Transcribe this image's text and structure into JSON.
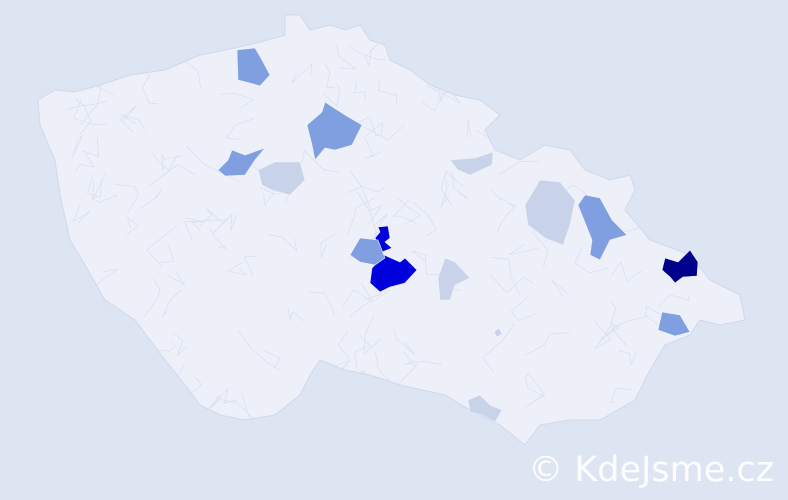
{
  "watermark": "© KdeJsme.cz",
  "colors": {
    "background": "#dde5f2",
    "base": "#edf0f8",
    "border": "#d0d8ec",
    "levels": {
      "darkest": "#00008b",
      "dark": "#0000dd",
      "medium": "#7f9fe0",
      "light": "#c8d2e8"
    }
  },
  "regions": [
    {
      "level": "darkest"
    },
    {
      "level": "dark"
    },
    {
      "level": "dark"
    },
    {
      "level": "medium"
    },
    {
      "level": "medium"
    },
    {
      "level": "medium"
    },
    {
      "level": "medium"
    },
    {
      "level": "medium"
    },
    {
      "level": "medium"
    },
    {
      "level": "light"
    },
    {
      "level": "light"
    },
    {
      "level": "light"
    },
    {
      "level": "light"
    },
    {
      "level": "light"
    },
    {
      "level": "light"
    }
  ]
}
